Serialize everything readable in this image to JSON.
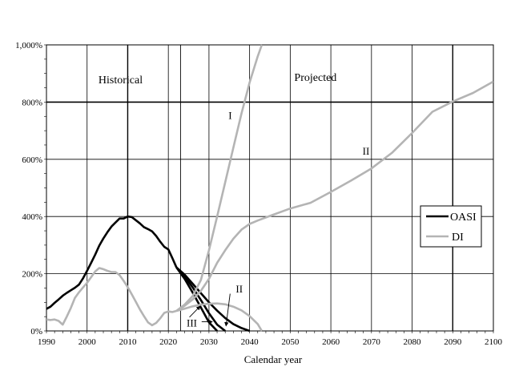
{
  "chart_data": {
    "type": "line",
    "title": "",
    "xlabel": "Calendar year",
    "ylabel": "",
    "xlim": [
      1990,
      2100
    ],
    "ylim": [
      0,
      1000
    ],
    "x_ticks": [
      1990,
      2000,
      2010,
      2020,
      2030,
      2040,
      2050,
      2060,
      2070,
      2080,
      2090,
      2100
    ],
    "y_ticks": [
      {
        "value": 0,
        "label": "0%"
      },
      {
        "value": 200,
        "label": "200%"
      },
      {
        "value": 400,
        "label": "400%"
      },
      {
        "value": 600,
        "label": "600%"
      },
      {
        "value": 800,
        "label": "800%"
      },
      {
        "value": 1000,
        "label": "1,000%"
      }
    ],
    "grid": true,
    "legend_position": "right",
    "colors": {
      "OASI": "#000000",
      "DI": "#b4b4b4"
    },
    "annotations": {
      "historical": "Historical",
      "projected": "Projected",
      "alt_I": "I",
      "alt_II_upper": "II",
      "alt_II_lower": "II",
      "alt_III": "III"
    },
    "series": [
      {
        "name": "OASI",
        "segment": "historical",
        "values": [
          [
            1990,
            77
          ],
          [
            1991,
            85
          ],
          [
            1992,
            98
          ],
          [
            1993,
            110
          ],
          [
            1994,
            123
          ],
          [
            1995,
            133
          ],
          [
            1996,
            142
          ],
          [
            1997,
            151
          ],
          [
            1998,
            162
          ],
          [
            1999,
            184
          ],
          [
            2000,
            210
          ],
          [
            2001,
            238
          ],
          [
            2002,
            267
          ],
          [
            2003,
            298
          ],
          [
            2004,
            323
          ],
          [
            2005,
            345
          ],
          [
            2006,
            365
          ],
          [
            2007,
            379
          ],
          [
            2008,
            393
          ],
          [
            2009,
            393
          ],
          [
            2010,
            400
          ],
          [
            2011,
            398
          ],
          [
            2012,
            387
          ],
          [
            2013,
            376
          ],
          [
            2014,
            363
          ],
          [
            2015,
            356
          ],
          [
            2016,
            348
          ],
          [
            2017,
            332
          ],
          [
            2018,
            312
          ],
          [
            2019,
            294
          ],
          [
            2020,
            285
          ],
          [
            2021,
            254
          ],
          [
            2022,
            222
          ]
        ]
      },
      {
        "name": "OASI",
        "segment": "I",
        "values": [
          [
            2022,
            222
          ],
          [
            2024,
            197
          ],
          [
            2026,
            165
          ],
          [
            2028,
            132
          ],
          [
            2030,
            100
          ],
          [
            2032,
            71
          ],
          [
            2034,
            45
          ],
          [
            2036,
            24
          ],
          [
            2038,
            10
          ],
          [
            2040,
            0
          ]
        ]
      },
      {
        "name": "OASI",
        "segment": "II",
        "values": [
          [
            2022,
            222
          ],
          [
            2024,
            190
          ],
          [
            2026,
            152
          ],
          [
            2028,
            108
          ],
          [
            2030,
            62
          ],
          [
            2032,
            22
          ],
          [
            2034,
            0
          ]
        ]
      },
      {
        "name": "OASI",
        "segment": "III",
        "values": [
          [
            2022,
            222
          ],
          [
            2024,
            182
          ],
          [
            2026,
            134
          ],
          [
            2028,
            82
          ],
          [
            2030,
            30
          ],
          [
            2032,
            0
          ]
        ]
      },
      {
        "name": "DI",
        "segment": "historical",
        "values": [
          [
            1990,
            40
          ],
          [
            1991,
            38
          ],
          [
            1992,
            40
          ],
          [
            1993,
            35
          ],
          [
            1994,
            22
          ],
          [
            1995,
            50
          ],
          [
            1996,
            80
          ],
          [
            1997,
            115
          ],
          [
            1998,
            135
          ],
          [
            1999,
            152
          ],
          [
            2000,
            168
          ],
          [
            2001,
            188
          ],
          [
            2002,
            208
          ],
          [
            2003,
            220
          ],
          [
            2004,
            216
          ],
          [
            2005,
            210
          ],
          [
            2006,
            206
          ],
          [
            2007,
            206
          ],
          [
            2008,
            195
          ],
          [
            2009,
            175
          ],
          [
            2010,
            153
          ],
          [
            2011,
            128
          ],
          [
            2012,
            102
          ],
          [
            2013,
            75
          ],
          [
            2014,
            52
          ],
          [
            2015,
            30
          ],
          [
            2016,
            20
          ],
          [
            2017,
            28
          ],
          [
            2018,
            44
          ],
          [
            2019,
            63
          ],
          [
            2020,
            68
          ],
          [
            2021,
            66
          ],
          [
            2022,
            70
          ]
        ]
      },
      {
        "name": "DI",
        "segment": "I",
        "values": [
          [
            2022,
            70
          ],
          [
            2024,
            92
          ],
          [
            2026,
            122
          ],
          [
            2028,
            178
          ],
          [
            2030,
            282
          ],
          [
            2032,
            400
          ],
          [
            2034,
            520
          ],
          [
            2036,
            640
          ],
          [
            2038,
            760
          ],
          [
            2040,
            868
          ],
          [
            2042,
            960
          ],
          [
            2043,
            1000
          ]
        ]
      },
      {
        "name": "DI",
        "segment": "II",
        "values": [
          [
            2022,
            70
          ],
          [
            2024,
            88
          ],
          [
            2026,
            110
          ],
          [
            2028,
            140
          ],
          [
            2030,
            182
          ],
          [
            2032,
            238
          ],
          [
            2034,
            282
          ],
          [
            2036,
            322
          ],
          [
            2038,
            354
          ],
          [
            2040,
            374
          ],
          [
            2042,
            386
          ],
          [
            2045,
            402
          ],
          [
            2050,
            428
          ],
          [
            2055,
            448
          ],
          [
            2060,
            486
          ],
          [
            2065,
            526
          ],
          [
            2070,
            568
          ],
          [
            2075,
            622
          ],
          [
            2080,
            692
          ],
          [
            2085,
            766
          ],
          [
            2090,
            802
          ],
          [
            2095,
            832
          ],
          [
            2100,
            872
          ]
        ]
      },
      {
        "name": "DI",
        "segment": "III",
        "values": [
          [
            2022,
            70
          ],
          [
            2024,
            78
          ],
          [
            2026,
            86
          ],
          [
            2028,
            92
          ],
          [
            2030,
            95
          ],
          [
            2032,
            96
          ],
          [
            2034,
            93
          ],
          [
            2036,
            85
          ],
          [
            2038,
            72
          ],
          [
            2040,
            52
          ],
          [
            2042,
            24
          ],
          [
            2043,
            0
          ]
        ]
      }
    ]
  },
  "legend": {
    "oasi": "OASI",
    "di": "DI"
  }
}
